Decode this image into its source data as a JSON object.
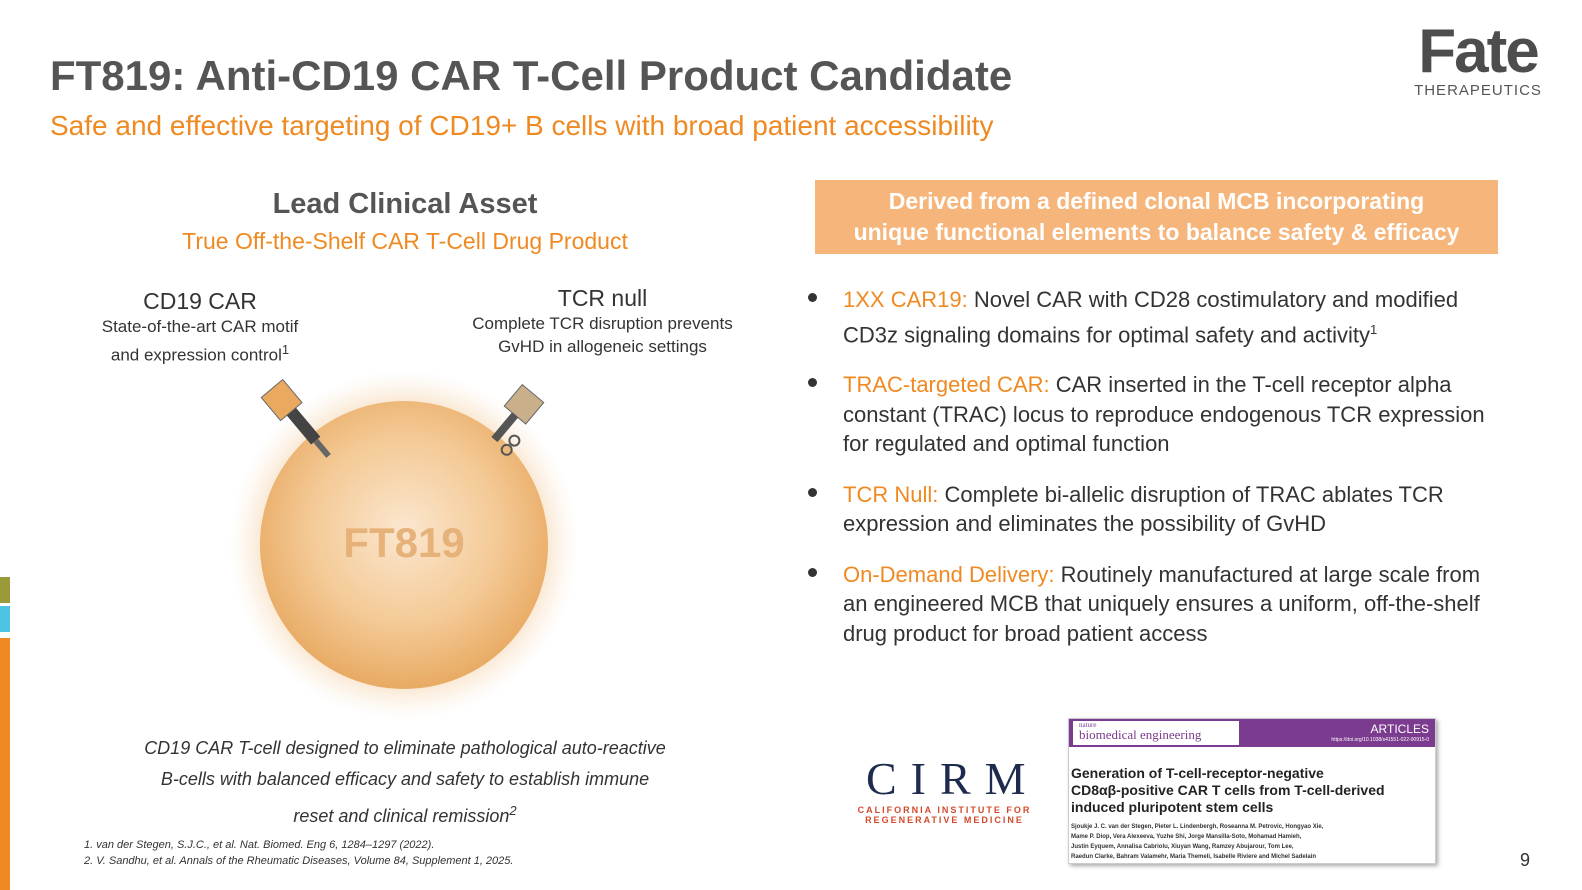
{
  "logo": {
    "name": "Fate",
    "subtitle": "THERAPEUTICS"
  },
  "header": {
    "title": "FT819: Anti-CD19 CAR T-Cell Product Candidate",
    "subtitle": "Safe and effective targeting of CD19+ B cells with broad patient accessibility"
  },
  "left": {
    "heading": "Lead Clinical Asset",
    "subheading": "True Off-the-Shelf CAR T-Cell Drug Product",
    "features": [
      {
        "title": "CD19 CAR",
        "lines": [
          "State-of-the-art CAR motif",
          "and expression control"
        ],
        "sup": "1"
      },
      {
        "title": "TCR null",
        "lines": [
          "Complete TCR disruption prevents",
          "GvHD in allogeneic settings"
        ]
      }
    ],
    "cell_label": "FT819",
    "caption": {
      "lines": [
        "CD19 CAR T-cell designed to eliminate pathological auto-reactive",
        "B-cells with balanced efficacy and safety to establish immune",
        "reset and clinical remission"
      ],
      "sup": "2"
    }
  },
  "right": {
    "banner": [
      "Derived from a defined clonal MCB incorporating",
      "unique functional elements to balance safety & efficacy"
    ],
    "bullets": [
      {
        "term": "1XX CAR19:",
        "text": "Novel CAR with CD28 costimulatory and modified CD3z signaling domains for optimal safety and activity",
        "sup": "1"
      },
      {
        "term": "TRAC-targeted CAR:",
        "text": "CAR inserted in the T-cell receptor alpha constant (TRAC) locus to reproduce endogenous TCR expression for regulated and optimal function"
      },
      {
        "term": "TCR Null:",
        "text": "Complete bi-allelic disruption of TRAC ablates TCR expression and eliminates the possibility of GvHD"
      },
      {
        "term": "On-Demand Delivery:",
        "text": "Routinely manufactured at large scale from an engineered MCB that uniquely ensures a uniform, off-the-shelf drug product for broad patient access"
      }
    ]
  },
  "cirm": {
    "name": "CIRM",
    "line1": "CALIFORNIA INSTITUTE FOR",
    "line2": "REGENERATIVE MEDICINE"
  },
  "article": {
    "journal_top": "nature",
    "journal": "biomedical engineering",
    "section": "ARTICLES",
    "doi": "https://doi.org/10.1038/s41551-022-00915-0",
    "title_lines": [
      "Generation of T-cell-receptor-negative",
      "CD8αβ-positive CAR T cells from T-cell-derived",
      "induced pluripotent stem cells"
    ],
    "authors": [
      "Sjoukje J. C. van der Stegen, Pieter L. Lindenbergh, Roseanna M. Petrovic, Hongyao Xie,",
      "Mame P. Diop, Vera Alexeeva, Yuzhe Shi, Jorge Mansilla-Soto, Mohamad Hamieh,",
      "Justin Eyquem, Annalisa Cabriolu, Xiuyan Wang, Ramzey Abujarour, Tom Lee,",
      "Raedun Clarke, Bahram Valamehr, Maria Themeli, Isabelle Riviere and Michel Sadelain"
    ]
  },
  "footnotes": [
    "1. van der Stegen, S.J.C., et al. Nat. Biomed. Eng 6, 1284–1297 (2022).",
    "2. V. Sandhu, et al. Annals of the Rheumatic Diseases, Volume 84, Supplement 1, 2025."
  ],
  "page_number": "9"
}
